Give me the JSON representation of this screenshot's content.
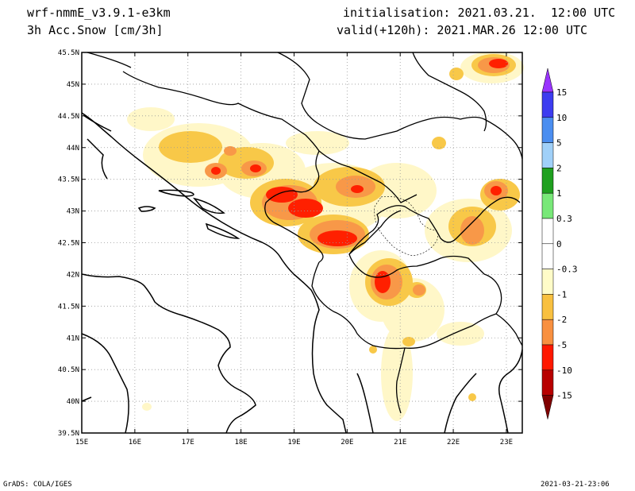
{
  "header": {
    "model": "wrf-nmmE_v3.9.1-e3km",
    "variable": "3h Acc.Snow [cm/3h]",
    "init": "initialisation: 2021.03.21.  12:00 UTC",
    "valid": "valid(+120h): 2021.MAR.26 12:00 UTC"
  },
  "footer": {
    "left": "GrADS: COLA/IGES",
    "right": "2021-03-21-23:06"
  },
  "map": {
    "lon_labels": [
      "15E",
      "16E",
      "17E",
      "18E",
      "19E",
      "20E",
      "21E",
      "22E",
      "23E"
    ],
    "lat_labels": [
      "45.5N",
      "45N",
      "44.5N",
      "44N",
      "43.5N",
      "43N",
      "42.5N",
      "42N",
      "41.5N",
      "41N",
      "40.5N",
      "40N",
      "39.5N"
    ],
    "lon_range": [
      15,
      23.3
    ],
    "lat_range": [
      39.5,
      45.5
    ]
  },
  "colorbar": {
    "labels": [
      "15",
      "10",
      "5",
      "2",
      "1",
      "0.3",
      "0",
      "-0.3",
      "-1",
      "-2",
      "-5",
      "-10",
      "-15"
    ],
    "colors": [
      "#3c3cf0",
      "#4b8ef0",
      "#a0d0f8",
      "#1fa01f",
      "#78e878",
      "#ffffff",
      "#ffffff",
      "#fffcc8",
      "#f8c040",
      "#f89040",
      "#ff1800",
      "#b80000"
    ],
    "top_color": "#9933ff",
    "bottom_color": "#800000"
  },
  "colors": {
    "light": "#fff7c8",
    "yellow": "#f8c848",
    "orange": "#f89848",
    "red": "#ff2000",
    "darkred": "#c00000"
  }
}
